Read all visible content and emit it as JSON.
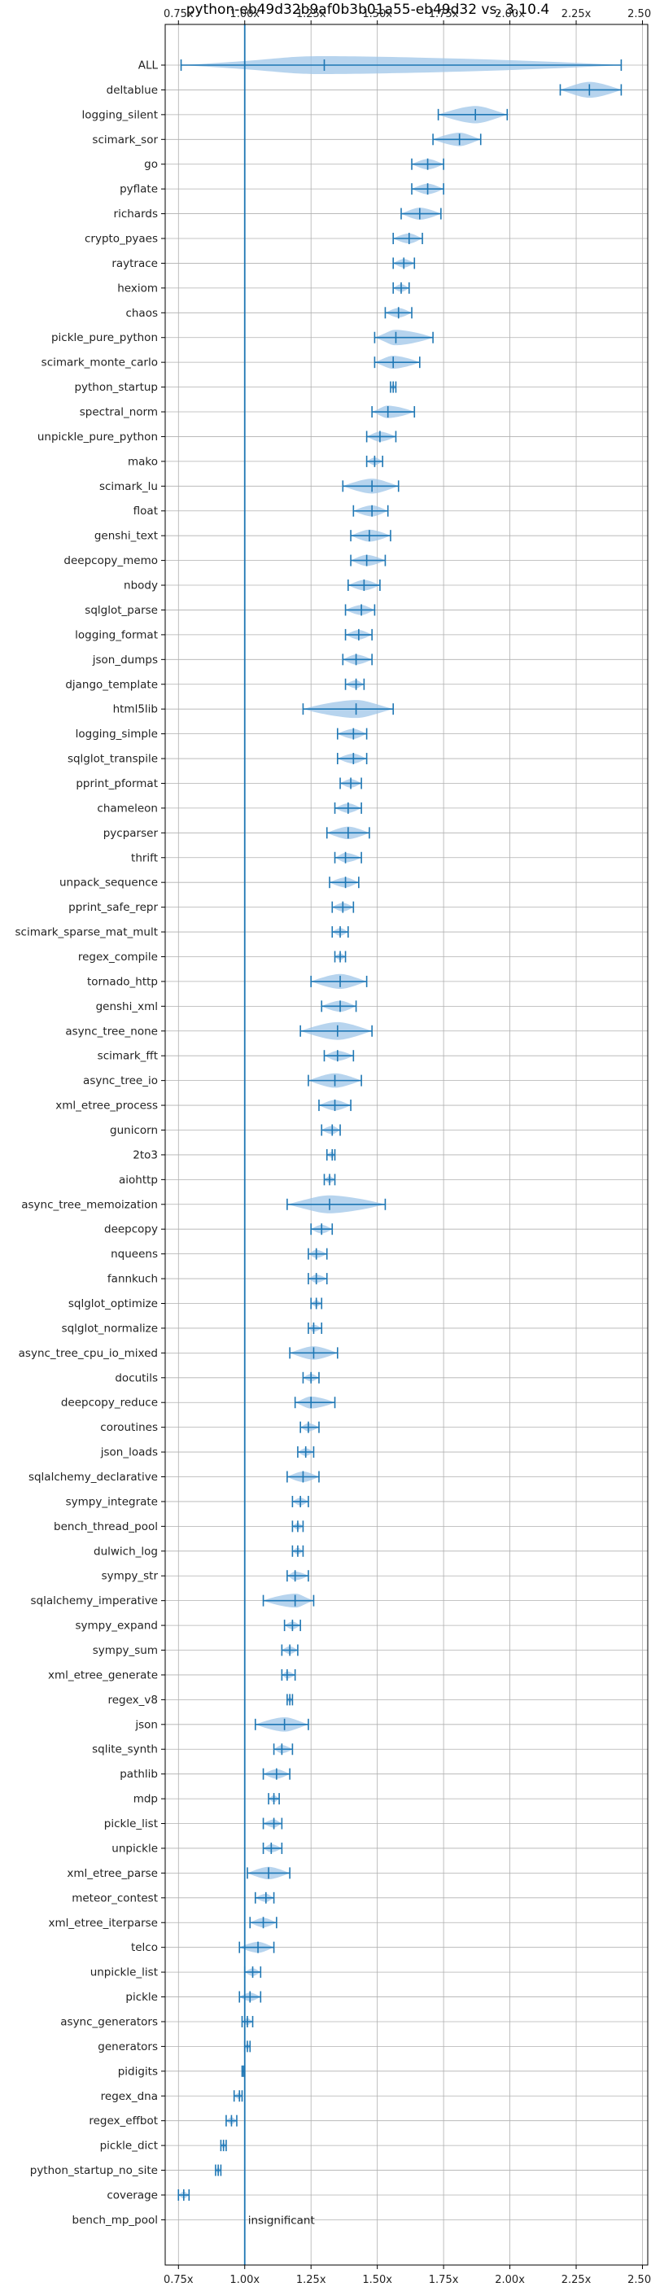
{
  "chart_data": {
    "type": "violin",
    "title": "python-eb49d32b9af0b3b01a55-eb49d32 vs. 3.10.4",
    "xlim": [
      0.7,
      2.52
    ],
    "xticks": [
      0.75,
      1.0,
      1.25,
      1.5,
      1.75,
      2.0,
      2.25,
      2.5
    ],
    "xtick_labels": [
      "0.75x",
      "1.00x",
      "1.25x",
      "1.50x",
      "1.75x",
      "2.00x",
      "2.25x",
      "2.50x"
    ],
    "ticks_top_and_bottom": true,
    "reference_line": 1.0,
    "annotation": "insignificant",
    "annotation_row": "bench_mp_pool",
    "grid": true,
    "colors": {
      "line": "#1f77b4",
      "fill": "#9fc5e8",
      "grid": "#b0b0b0"
    },
    "categories": [
      "ALL",
      "deltablue",
      "logging_silent",
      "scimark_sor",
      "go",
      "pyflate",
      "richards",
      "crypto_pyaes",
      "raytrace",
      "hexiom",
      "chaos",
      "pickle_pure_python",
      "scimark_monte_carlo",
      "python_startup",
      "spectral_norm",
      "unpickle_pure_python",
      "mako",
      "scimark_lu",
      "float",
      "genshi_text",
      "deepcopy_memo",
      "nbody",
      "sqlglot_parse",
      "logging_format",
      "json_dumps",
      "django_template",
      "html5lib",
      "logging_simple",
      "sqlglot_transpile",
      "pprint_pformat",
      "chameleon",
      "pycparser",
      "thrift",
      "unpack_sequence",
      "pprint_safe_repr",
      "scimark_sparse_mat_mult",
      "regex_compile",
      "tornado_http",
      "genshi_xml",
      "async_tree_none",
      "scimark_fft",
      "async_tree_io",
      "xml_etree_process",
      "gunicorn",
      "2to3",
      "aiohttp",
      "async_tree_memoization",
      "deepcopy",
      "nqueens",
      "fannkuch",
      "sqlglot_optimize",
      "sqlglot_normalize",
      "async_tree_cpu_io_mixed",
      "docutils",
      "deepcopy_reduce",
      "coroutines",
      "json_loads",
      "sqlalchemy_declarative",
      "sympy_integrate",
      "bench_thread_pool",
      "dulwich_log",
      "sympy_str",
      "sqlalchemy_imperative",
      "sympy_expand",
      "sympy_sum",
      "xml_etree_generate",
      "regex_v8",
      "json",
      "sqlite_synth",
      "pathlib",
      "mdp",
      "pickle_list",
      "unpickle",
      "xml_etree_parse",
      "meteor_contest",
      "xml_etree_iterparse",
      "telco",
      "unpickle_list",
      "pickle",
      "async_generators",
      "generators",
      "pidigits",
      "regex_dna",
      "regex_effbot",
      "pickle_dict",
      "python_startup_no_site",
      "coverage",
      "bench_mp_pool"
    ],
    "series": [
      {
        "mean": 1.3,
        "min": 0.76,
        "max": 2.42
      },
      {
        "mean": 2.3,
        "min": 2.19,
        "max": 2.42
      },
      {
        "mean": 1.87,
        "min": 1.73,
        "max": 1.99
      },
      {
        "mean": 1.81,
        "min": 1.71,
        "max": 1.89
      },
      {
        "mean": 1.69,
        "min": 1.63,
        "max": 1.75
      },
      {
        "mean": 1.69,
        "min": 1.63,
        "max": 1.75
      },
      {
        "mean": 1.66,
        "min": 1.59,
        "max": 1.74
      },
      {
        "mean": 1.62,
        "min": 1.56,
        "max": 1.67
      },
      {
        "mean": 1.6,
        "min": 1.56,
        "max": 1.64
      },
      {
        "mean": 1.59,
        "min": 1.56,
        "max": 1.62
      },
      {
        "mean": 1.58,
        "min": 1.53,
        "max": 1.63
      },
      {
        "mean": 1.57,
        "min": 1.49,
        "max": 1.71
      },
      {
        "mean": 1.56,
        "min": 1.49,
        "max": 1.66
      },
      {
        "mean": 1.56,
        "min": 1.55,
        "max": 1.57
      },
      {
        "mean": 1.54,
        "min": 1.48,
        "max": 1.64
      },
      {
        "mean": 1.51,
        "min": 1.46,
        "max": 1.57
      },
      {
        "mean": 1.49,
        "min": 1.46,
        "max": 1.52
      },
      {
        "mean": 1.48,
        "min": 1.37,
        "max": 1.58
      },
      {
        "mean": 1.48,
        "min": 1.41,
        "max": 1.54
      },
      {
        "mean": 1.47,
        "min": 1.4,
        "max": 1.55
      },
      {
        "mean": 1.46,
        "min": 1.4,
        "max": 1.53
      },
      {
        "mean": 1.45,
        "min": 1.39,
        "max": 1.51
      },
      {
        "mean": 1.44,
        "min": 1.38,
        "max": 1.49
      },
      {
        "mean": 1.43,
        "min": 1.38,
        "max": 1.48
      },
      {
        "mean": 1.42,
        "min": 1.37,
        "max": 1.48
      },
      {
        "mean": 1.42,
        "min": 1.38,
        "max": 1.45
      },
      {
        "mean": 1.42,
        "min": 1.22,
        "max": 1.56
      },
      {
        "mean": 1.41,
        "min": 1.35,
        "max": 1.46
      },
      {
        "mean": 1.41,
        "min": 1.35,
        "max": 1.46
      },
      {
        "mean": 1.4,
        "min": 1.36,
        "max": 1.44
      },
      {
        "mean": 1.39,
        "min": 1.34,
        "max": 1.44
      },
      {
        "mean": 1.39,
        "min": 1.31,
        "max": 1.47
      },
      {
        "mean": 1.38,
        "min": 1.34,
        "max": 1.44
      },
      {
        "mean": 1.38,
        "min": 1.32,
        "max": 1.43
      },
      {
        "mean": 1.37,
        "min": 1.33,
        "max": 1.41
      },
      {
        "mean": 1.36,
        "min": 1.33,
        "max": 1.39
      },
      {
        "mean": 1.36,
        "min": 1.34,
        "max": 1.38
      },
      {
        "mean": 1.36,
        "min": 1.25,
        "max": 1.46
      },
      {
        "mean": 1.36,
        "min": 1.29,
        "max": 1.42
      },
      {
        "mean": 1.35,
        "min": 1.21,
        "max": 1.48
      },
      {
        "mean": 1.35,
        "min": 1.3,
        "max": 1.41
      },
      {
        "mean": 1.34,
        "min": 1.24,
        "max": 1.44
      },
      {
        "mean": 1.34,
        "min": 1.28,
        "max": 1.4
      },
      {
        "mean": 1.33,
        "min": 1.29,
        "max": 1.36
      },
      {
        "mean": 1.33,
        "min": 1.31,
        "max": 1.34
      },
      {
        "mean": 1.32,
        "min": 1.3,
        "max": 1.34
      },
      {
        "mean": 1.32,
        "min": 1.16,
        "max": 1.53
      },
      {
        "mean": 1.29,
        "min": 1.25,
        "max": 1.33
      },
      {
        "mean": 1.27,
        "min": 1.24,
        "max": 1.31
      },
      {
        "mean": 1.27,
        "min": 1.24,
        "max": 1.31
      },
      {
        "mean": 1.27,
        "min": 1.25,
        "max": 1.29
      },
      {
        "mean": 1.26,
        "min": 1.24,
        "max": 1.29
      },
      {
        "mean": 1.26,
        "min": 1.17,
        "max": 1.35
      },
      {
        "mean": 1.25,
        "min": 1.22,
        "max": 1.28
      },
      {
        "mean": 1.25,
        "min": 1.19,
        "max": 1.34
      },
      {
        "mean": 1.24,
        "min": 1.21,
        "max": 1.28
      },
      {
        "mean": 1.23,
        "min": 1.2,
        "max": 1.26
      },
      {
        "mean": 1.22,
        "min": 1.16,
        "max": 1.28
      },
      {
        "mean": 1.21,
        "min": 1.18,
        "max": 1.24
      },
      {
        "mean": 1.2,
        "min": 1.18,
        "max": 1.22
      },
      {
        "mean": 1.2,
        "min": 1.18,
        "max": 1.22
      },
      {
        "mean": 1.19,
        "min": 1.16,
        "max": 1.24
      },
      {
        "mean": 1.19,
        "min": 1.07,
        "max": 1.26
      },
      {
        "mean": 1.18,
        "min": 1.15,
        "max": 1.21
      },
      {
        "mean": 1.17,
        "min": 1.14,
        "max": 1.2
      },
      {
        "mean": 1.16,
        "min": 1.14,
        "max": 1.19
      },
      {
        "mean": 1.17,
        "min": 1.16,
        "max": 1.18
      },
      {
        "mean": 1.15,
        "min": 1.04,
        "max": 1.24
      },
      {
        "mean": 1.14,
        "min": 1.11,
        "max": 1.18
      },
      {
        "mean": 1.12,
        "min": 1.07,
        "max": 1.17
      },
      {
        "mean": 1.11,
        "min": 1.09,
        "max": 1.13
      },
      {
        "mean": 1.11,
        "min": 1.07,
        "max": 1.14
      },
      {
        "mean": 1.1,
        "min": 1.07,
        "max": 1.14
      },
      {
        "mean": 1.09,
        "min": 1.01,
        "max": 1.17
      },
      {
        "mean": 1.08,
        "min": 1.04,
        "max": 1.11
      },
      {
        "mean": 1.07,
        "min": 1.02,
        "max": 1.12
      },
      {
        "mean": 1.05,
        "min": 0.98,
        "max": 1.11
      },
      {
        "mean": 1.03,
        "min": 1.0,
        "max": 1.06
      },
      {
        "mean": 1.02,
        "min": 0.98,
        "max": 1.06
      },
      {
        "mean": 1.01,
        "min": 0.99,
        "max": 1.03
      },
      {
        "mean": 1.01,
        "min": 1.0,
        "max": 1.02
      },
      {
        "mean": 0.995,
        "min": 0.99,
        "max": 1.0
      },
      {
        "mean": 0.98,
        "min": 0.96,
        "max": 0.99
      },
      {
        "mean": 0.95,
        "min": 0.93,
        "max": 0.97
      },
      {
        "mean": 0.92,
        "min": 0.91,
        "max": 0.93
      },
      {
        "mean": 0.9,
        "min": 0.89,
        "max": 0.91
      },
      {
        "mean": 0.77,
        "min": 0.75,
        "max": 0.79
      },
      {
        "mean": null,
        "min": null,
        "max": null
      }
    ]
  }
}
